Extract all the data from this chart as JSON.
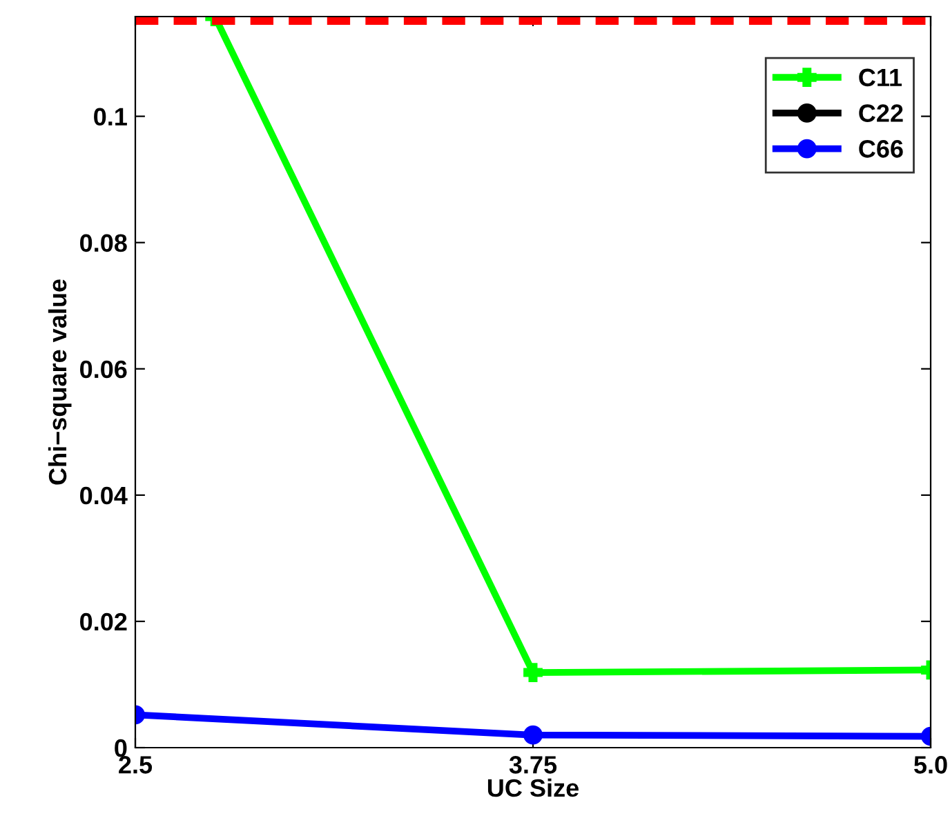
{
  "chart_data": {
    "type": "line",
    "xlabel": "UC Size",
    "ylabel": "Chi−square value",
    "x": [
      2.5,
      3.75,
      5.0
    ],
    "series": [
      {
        "name": "C11",
        "color": "#00ff00",
        "x": [
          2.75,
          3.75,
          5.0
        ],
        "values": [
          0.1158,
          0.0119,
          0.0123
        ],
        "marker": "cross"
      },
      {
        "name": "C22",
        "color": "#000000",
        "values": [
          null,
          null,
          null
        ],
        "marker": "circle"
      },
      {
        "name": "C66",
        "color": "#0000ff",
        "values": [
          0.0052,
          0.002,
          0.0018
        ],
        "marker": "circle"
      }
    ],
    "xlim": [
      2.5,
      5.0
    ],
    "xticks": [
      2.5,
      3.75,
      {
        "value": 5.0,
        "label": "5.0"
      }
    ],
    "ylim": [
      0,
      0.1158
    ],
    "yticks": [
      0,
      0.02,
      0.04,
      0.06,
      0.08,
      0.1
    ],
    "ref_lines": [
      {
        "axis": "y",
        "value": 0.1151,
        "color": "#ff0000",
        "line_style": "dashed"
      }
    ],
    "grid": false,
    "legend": "top right",
    "line_style": "solid"
  }
}
